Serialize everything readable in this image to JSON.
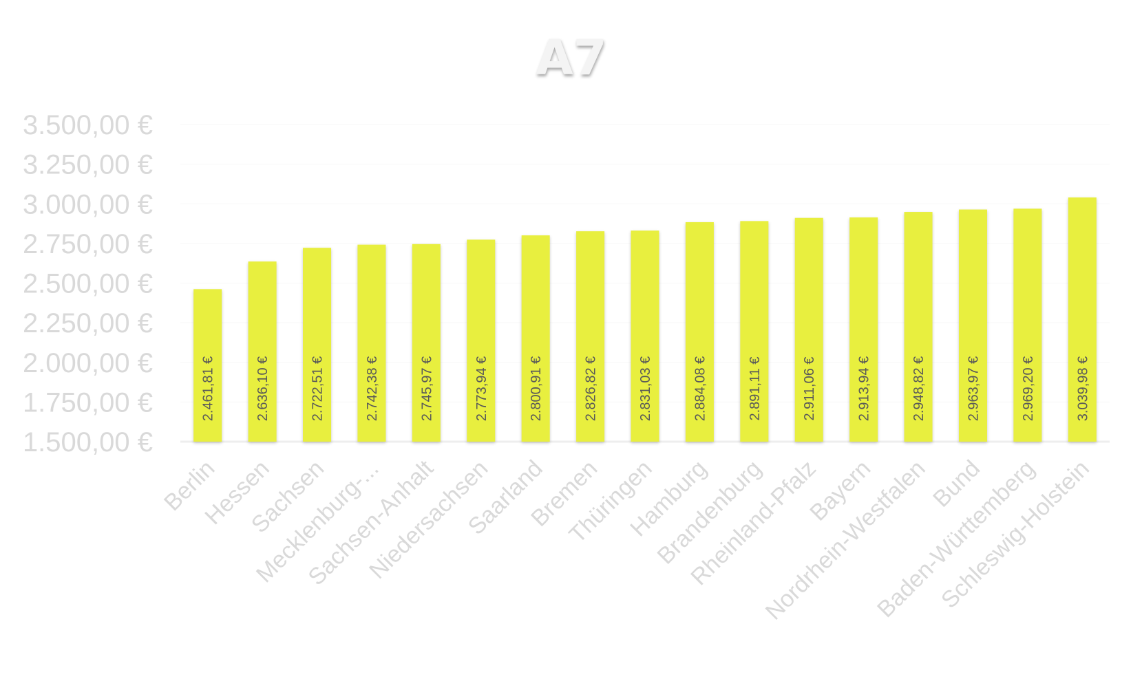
{
  "chart_data": {
    "type": "bar",
    "title": "A7",
    "xlabel": "",
    "ylabel": "",
    "ylim": [
      1500,
      3500
    ],
    "y_ticks": [
      1500,
      1750,
      2000,
      2250,
      2500,
      2750,
      3000,
      3250,
      3500
    ],
    "y_tick_labels": [
      "1.500,00 €",
      "1.750,00 €",
      "2.000,00 €",
      "2.250,00 €",
      "2.500,00 €",
      "2.750,00 €",
      "3.000,00 €",
      "3.250,00 €",
      "3.500,00 €"
    ],
    "grid": true,
    "legend": "none",
    "bar_color": "#e8ef3f",
    "categories": [
      "Berlin",
      "Hessen",
      "Sachsen",
      "Mecklenburg-...",
      "Sachsen-Anhalt",
      "Niedersachsen",
      "Saarland",
      "Bremen",
      "Thüringen",
      "Hamburg",
      "Brandenburg",
      "Rheinland-Pfalz",
      "Bayern",
      "Nordrhein-Westfalen",
      "Bund",
      "Baden-Württemberg",
      "Schleswig-Holstein"
    ],
    "values": [
      2461.81,
      2636.1,
      2722.51,
      2742.38,
      2745.97,
      2773.94,
      2800.91,
      2826.82,
      2831.03,
      2884.08,
      2891.11,
      2911.06,
      2913.94,
      2948.82,
      2963.97,
      2969.2,
      3039.98
    ],
    "data_labels": [
      "2.461,81 €",
      "2.636,10 €",
      "2.722,51 €",
      "2.742,38 €",
      "2.745,97 €",
      "2.773,94 €",
      "2.800,91 €",
      "2.826,82 €",
      "2.831,03 €",
      "2.884,08 €",
      "2.891,11 €",
      "2.911,06 €",
      "2.913,94 €",
      "2.948,82 €",
      "2.963,97 €",
      "2.969,20 €",
      "3.039,98 €"
    ]
  }
}
